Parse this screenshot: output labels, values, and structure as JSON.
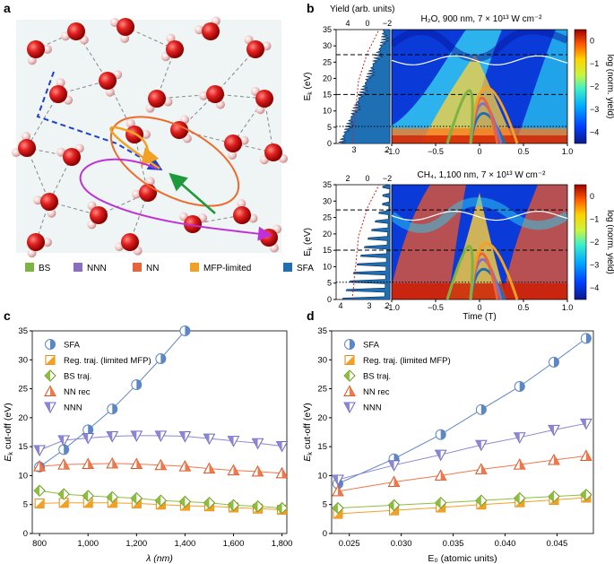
{
  "panel_letters": {
    "a": "a",
    "b": "b",
    "c": "c",
    "d": "d"
  },
  "colors": {
    "BS": "#7cb342",
    "NNN": "#8a6fc0",
    "NN": "#e8643a",
    "MFP": "#f2a125",
    "SFA": "#1f6fb4",
    "SFA_marker": "#5d86c5",
    "NN_marker": "#f2774a",
    "NNN_marker": "#8b86d6"
  },
  "panel_a": {
    "legend": [
      {
        "key": "BS",
        "label": "BS"
      },
      {
        "key": "NNN",
        "label": "NNN"
      },
      {
        "key": "NN",
        "label": "NN"
      },
      {
        "key": "MFP",
        "label": "MFP-limited"
      },
      {
        "key": "SFA",
        "label": "SFA"
      }
    ]
  },
  "panel_b": {
    "yield_label": "Yield (arb. units)",
    "ek_label": "E",
    "ek_sub": "k",
    "ek_unit": " (eV)",
    "cbar_label": "log (norm. yield)",
    "time_label": "Time (T)",
    "top": {
      "title": "H₂O, 900 nm, 7 × 10¹³ W cm⁻²",
      "yield_ticks": [
        "4",
        "0",
        "−2"
      ],
      "yield_ticks_bottom": [
        "3",
        "2"
      ],
      "ek_ticks": [
        "0",
        "5",
        "10",
        "15",
        "20",
        "25",
        "30",
        "35"
      ],
      "time_ticks": [
        "−1.0",
        "−0.5",
        "0",
        "0.5",
        "1.0"
      ],
      "cbar_ticks": [
        "0",
        "−1",
        "−2",
        "−3",
        "−4"
      ]
    },
    "bottom": {
      "title": "CH₄, 1,100 nm, 7 × 10¹³ W cm⁻²",
      "yield_ticks": [
        "2",
        "0",
        "−2"
      ],
      "yield_ticks_bottom": [
        "4",
        "3",
        "2"
      ],
      "ek_ticks": [
        "0",
        "5",
        "10",
        "15",
        "20",
        "25",
        "30",
        "35"
      ],
      "time_ticks": [
        "−1.0",
        "−0.5",
        "0",
        "0.5",
        "1.0"
      ],
      "cbar_ticks": [
        "0",
        "−1",
        "−2",
        "−3",
        "−4"
      ]
    }
  },
  "chart_data": [
    {
      "id": "c",
      "type": "line",
      "xlabel": "λ (nm)",
      "ylabel": "E_k cut-off (eV)",
      "xlim": [
        770,
        1820
      ],
      "ylim": [
        0,
        35
      ],
      "xticks": [
        800,
        1000,
        1200,
        1400,
        1600,
        1800
      ],
      "xtick_labels": [
        "800",
        "1,000",
        "1,200",
        "1,400",
        "1,600",
        "1,800"
      ],
      "yticks": [
        0,
        5,
        10,
        15,
        20,
        25,
        30,
        35
      ],
      "legend_position": "top-left",
      "series": [
        {
          "key": "SFA",
          "name": "SFA",
          "x": [
            800,
            900,
            1000,
            1100,
            1200,
            1300,
            1400
          ],
          "y": [
            11.5,
            14.5,
            17.9,
            21.5,
            25.7,
            30.2,
            35.0
          ]
        },
        {
          "key": "MFP",
          "name": "Reg. traj. (limited MFP)",
          "x": [
            800,
            900,
            1000,
            1100,
            1200,
            1300,
            1400,
            1500,
            1600,
            1700,
            1800
          ],
          "y": [
            5.2,
            5.3,
            5.3,
            5.3,
            5.2,
            5.0,
            4.8,
            4.7,
            4.5,
            4.3,
            4.1
          ]
        },
        {
          "key": "BS",
          "name": "BS traj.",
          "x": [
            800,
            900,
            1000,
            1100,
            1200,
            1300,
            1400,
            1500,
            1600,
            1700,
            1800
          ],
          "y": [
            7.4,
            6.8,
            6.5,
            6.3,
            6.1,
            5.7,
            5.5,
            5.3,
            4.9,
            4.7,
            4.4
          ]
        },
        {
          "key": "NN",
          "name": "NN rec",
          "x": [
            800,
            900,
            1000,
            1100,
            1200,
            1300,
            1400,
            1500,
            1600,
            1700,
            1800
          ],
          "y": [
            11.6,
            11.9,
            12.0,
            12.1,
            12.0,
            11.8,
            11.6,
            11.2,
            10.9,
            10.7,
            10.4
          ]
        },
        {
          "key": "NNN",
          "name": "NNN",
          "x": [
            800,
            900,
            1000,
            1100,
            1200,
            1300,
            1400,
            1500,
            1600,
            1700,
            1800
          ],
          "y": [
            14.4,
            16.1,
            16.5,
            16.8,
            16.9,
            16.9,
            16.8,
            16.4,
            16.0,
            15.6,
            15.1
          ]
        }
      ]
    },
    {
      "id": "d",
      "type": "line",
      "xlabel": "E₀ (atomic units)",
      "ylabel": "E_k cut-off (eV)",
      "xlim": [
        0.0233,
        0.0485
      ],
      "ylim": [
        0,
        35
      ],
      "xticks": [
        0.025,
        0.03,
        0.035,
        0.04,
        0.045
      ],
      "xtick_labels": [
        "0.025",
        "0.030",
        "0.035",
        "0.040",
        "0.045"
      ],
      "yticks": [
        0,
        5,
        10,
        15,
        20,
        25,
        30,
        35
      ],
      "legend_position": "top-left",
      "series": [
        {
          "key": "SFA",
          "name": "SFA",
          "x": [
            0.0239,
            0.0293,
            0.0338,
            0.0377,
            0.0414,
            0.0447,
            0.0478
          ],
          "y": [
            8.6,
            12.9,
            17.1,
            21.4,
            25.4,
            29.6,
            33.7
          ]
        },
        {
          "key": "MFP",
          "name": "Reg. traj. (limited MFP)",
          "x": [
            0.0239,
            0.0293,
            0.0338,
            0.0377,
            0.0414,
            0.0447,
            0.0478
          ],
          "y": [
            3.4,
            4.0,
            4.5,
            5.0,
            5.4,
            5.8,
            6.2
          ]
        },
        {
          "key": "BS",
          "name": "BS traj.",
          "x": [
            0.0239,
            0.0293,
            0.0338,
            0.0377,
            0.0414,
            0.0447,
            0.0478
          ],
          "y": [
            4.4,
            4.9,
            5.3,
            5.7,
            6.1,
            6.4,
            6.7
          ]
        },
        {
          "key": "NN",
          "name": "NN rec",
          "x": [
            0.0239,
            0.0293,
            0.0338,
            0.0377,
            0.0414,
            0.0447,
            0.0478
          ],
          "y": [
            7.3,
            8.9,
            10.0,
            11.1,
            11.9,
            12.7,
            13.4
          ]
        },
        {
          "key": "NNN",
          "name": "NNN",
          "x": [
            0.0239,
            0.0293,
            0.0338,
            0.0377,
            0.0414,
            0.0447,
            0.0478
          ],
          "y": [
            9.3,
            11.8,
            13.6,
            15.3,
            16.6,
            17.9,
            19.0
          ]
        }
      ]
    }
  ]
}
